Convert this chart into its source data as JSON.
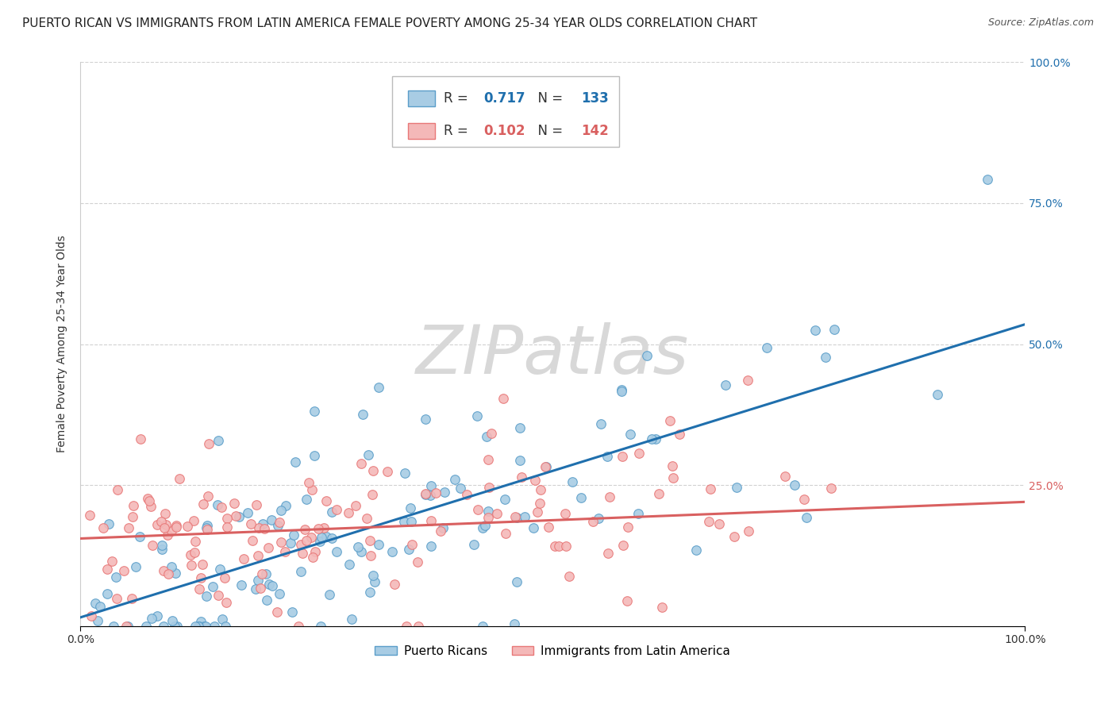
{
  "title": "PUERTO RICAN VS IMMIGRANTS FROM LATIN AMERICA FEMALE POVERTY AMONG 25-34 YEAR OLDS CORRELATION CHART",
  "source": "Source: ZipAtlas.com",
  "ylabel": "Female Poverty Among 25-34 Year Olds",
  "xlim": [
    0,
    1
  ],
  "ylim": [
    0,
    1
  ],
  "xticks": [
    0,
    1.0
  ],
  "xticklabels": [
    "0.0%",
    "100.0%"
  ],
  "yticks": [
    0,
    0.25,
    0.5,
    0.75,
    1.0
  ],
  "yticklabels_right": [
    "",
    "25.0%",
    "50.0%",
    "75.0%",
    "100.0%"
  ],
  "blue_R": 0.717,
  "blue_N": 133,
  "pink_R": 0.102,
  "pink_N": 142,
  "blue_color": "#a8cce4",
  "pink_color": "#f4b8b8",
  "blue_edge_color": "#5b9ec9",
  "pink_edge_color": "#e87878",
  "blue_line_color": "#1f6fad",
  "pink_line_color": "#d96060",
  "blue_label": "Puerto Ricans",
  "pink_label": "Immigrants from Latin America",
  "watermark": "ZIPatlas",
  "background_color": "#ffffff",
  "title_fontsize": 11,
  "axis_label_fontsize": 10,
  "tick_fontsize": 10,
  "right_tick_color_blue": "#5b9ec9",
  "right_tick_color_pink": "#d96060",
  "blue_slope": 0.52,
  "blue_intercept": 0.015,
  "pink_slope": 0.065,
  "pink_intercept": 0.155,
  "blue_noise": 0.1,
  "pink_noise": 0.075,
  "blue_seed": 42,
  "pink_seed": 99
}
